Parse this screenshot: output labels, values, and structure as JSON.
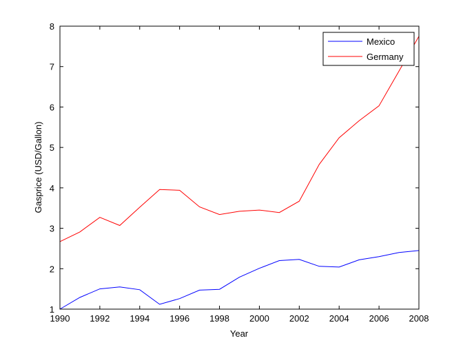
{
  "chart_data": {
    "type": "line",
    "title": "",
    "xlabel": "Year",
    "ylabel": "Gasprice (USD/Gallon)",
    "xlim": [
      1990,
      2008
    ],
    "ylim": [
      1,
      8
    ],
    "x_ticks": [
      1990,
      1992,
      1994,
      1996,
      1998,
      2000,
      2002,
      2004,
      2006,
      2008
    ],
    "y_ticks": [
      1,
      2,
      3,
      4,
      5,
      6,
      7,
      8
    ],
    "grid": false,
    "legend_position": "top-right",
    "x": [
      1990,
      1991,
      1992,
      1993,
      1994,
      1995,
      1996,
      1997,
      1998,
      1999,
      2000,
      2001,
      2002,
      2003,
      2004,
      2005,
      2006,
      2007,
      2008
    ],
    "series": [
      {
        "name": "Mexico",
        "color": "#0000ff",
        "values": [
          1.0,
          1.29,
          1.5,
          1.55,
          1.48,
          1.12,
          1.26,
          1.47,
          1.49,
          1.79,
          2.01,
          2.2,
          2.23,
          2.06,
          2.04,
          2.22,
          2.3,
          2.4,
          2.45
        ]
      },
      {
        "name": "Germany",
        "color": "#ff0000",
        "values": [
          2.67,
          2.91,
          3.27,
          3.07,
          3.52,
          3.96,
          3.94,
          3.53,
          3.34,
          3.42,
          3.45,
          3.39,
          3.67,
          4.58,
          5.24,
          5.66,
          6.03,
          6.89,
          7.75
        ]
      }
    ]
  }
}
